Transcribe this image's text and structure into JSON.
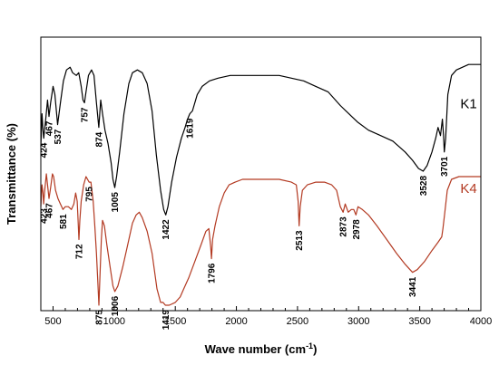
{
  "chart_data": {
    "type": "line",
    "xlabel": "Wave number (cm",
    "xlabel_sup": "-1",
    "xlabel_end": ")",
    "ylabel": "Transmittance (%)",
    "xlim": [
      400,
      4000
    ],
    "ylim": [
      0,
      1
    ],
    "xticks": [
      500,
      1000,
      1500,
      2000,
      2500,
      3000,
      3500,
      4000
    ],
    "grid": false,
    "series": [
      {
        "name": "K1",
        "color": "#000000",
        "points": [
          [
            400,
            0.6
          ],
          [
            410,
            0.72
          ],
          [
            418,
            0.66
          ],
          [
            424,
            0.63
          ],
          [
            440,
            0.7
          ],
          [
            455,
            0.77
          ],
          [
            467,
            0.71
          ],
          [
            480,
            0.76
          ],
          [
            500,
            0.82
          ],
          [
            515,
            0.79
          ],
          [
            537,
            0.68
          ],
          [
            560,
            0.76
          ],
          [
            585,
            0.84
          ],
          [
            610,
            0.88
          ],
          [
            640,
            0.89
          ],
          [
            660,
            0.87
          ],
          [
            690,
            0.86
          ],
          [
            710,
            0.87
          ],
          [
            730,
            0.82
          ],
          [
            745,
            0.77
          ],
          [
            757,
            0.76
          ],
          [
            770,
            0.8
          ],
          [
            790,
            0.86
          ],
          [
            815,
            0.88
          ],
          [
            835,
            0.86
          ],
          [
            855,
            0.76
          ],
          [
            874,
            0.67
          ],
          [
            890,
            0.77
          ],
          [
            905,
            0.72
          ],
          [
            925,
            0.66
          ],
          [
            950,
            0.61
          ],
          [
            975,
            0.54
          ],
          [
            990,
            0.48
          ],
          [
            1005,
            0.45
          ],
          [
            1020,
            0.49
          ],
          [
            1045,
            0.58
          ],
          [
            1080,
            0.72
          ],
          [
            1120,
            0.83
          ],
          [
            1150,
            0.87
          ],
          [
            1190,
            0.88
          ],
          [
            1230,
            0.87
          ],
          [
            1270,
            0.83
          ],
          [
            1310,
            0.73
          ],
          [
            1345,
            0.57
          ],
          [
            1380,
            0.44
          ],
          [
            1405,
            0.37
          ],
          [
            1422,
            0.35
          ],
          [
            1440,
            0.38
          ],
          [
            1470,
            0.47
          ],
          [
            1510,
            0.56
          ],
          [
            1550,
            0.63
          ],
          [
            1580,
            0.67
          ],
          [
            1600,
            0.7
          ],
          [
            1619,
            0.72
          ],
          [
            1640,
            0.73
          ],
          [
            1680,
            0.79
          ],
          [
            1720,
            0.82
          ],
          [
            1780,
            0.84
          ],
          [
            1850,
            0.85
          ],
          [
            1950,
            0.86
          ],
          [
            2050,
            0.86
          ],
          [
            2150,
            0.86
          ],
          [
            2250,
            0.86
          ],
          [
            2350,
            0.86
          ],
          [
            2450,
            0.85
          ],
          [
            2550,
            0.84
          ],
          [
            2650,
            0.82
          ],
          [
            2750,
            0.8
          ],
          [
            2850,
            0.75
          ],
          [
            2920,
            0.72
          ],
          [
            2990,
            0.69
          ],
          [
            3080,
            0.66
          ],
          [
            3180,
            0.64
          ],
          [
            3280,
            0.62
          ],
          [
            3380,
            0.58
          ],
          [
            3440,
            0.55
          ],
          [
            3490,
            0.52
          ],
          [
            3528,
            0.51
          ],
          [
            3560,
            0.53
          ],
          [
            3600,
            0.58
          ],
          [
            3630,
            0.63
          ],
          [
            3650,
            0.67
          ],
          [
            3670,
            0.64
          ],
          [
            3685,
            0.7
          ],
          [
            3695,
            0.64
          ],
          [
            3701,
            0.58
          ],
          [
            3712,
            0.63
          ],
          [
            3730,
            0.79
          ],
          [
            3760,
            0.86
          ],
          [
            3800,
            0.88
          ],
          [
            3850,
            0.89
          ],
          [
            3900,
            0.9
          ],
          [
            3950,
            0.9
          ],
          [
            4000,
            0.9
          ]
        ]
      },
      {
        "name": "K4",
        "color": "#b33a22",
        "points": [
          [
            400,
            0.38
          ],
          [
            410,
            0.46
          ],
          [
            418,
            0.43
          ],
          [
            423,
            0.39
          ],
          [
            432,
            0.44
          ],
          [
            445,
            0.5
          ],
          [
            455,
            0.46
          ],
          [
            467,
            0.41
          ],
          [
            480,
            0.45
          ],
          [
            495,
            0.5
          ],
          [
            505,
            0.49
          ],
          [
            520,
            0.44
          ],
          [
            540,
            0.41
          ],
          [
            560,
            0.39
          ],
          [
            581,
            0.37
          ],
          [
            600,
            0.38
          ],
          [
            625,
            0.38
          ],
          [
            650,
            0.37
          ],
          [
            670,
            0.39
          ],
          [
            685,
            0.43
          ],
          [
            698,
            0.4
          ],
          [
            706,
            0.32
          ],
          [
            712,
            0.26
          ],
          [
            719,
            0.33
          ],
          [
            730,
            0.4
          ],
          [
            750,
            0.46
          ],
          [
            770,
            0.49
          ],
          [
            795,
            0.47
          ],
          [
            810,
            0.47
          ],
          [
            828,
            0.4
          ],
          [
            842,
            0.31
          ],
          [
            855,
            0.21
          ],
          [
            867,
            0.1
          ],
          [
            875,
            0.02
          ],
          [
            883,
            0.12
          ],
          [
            895,
            0.26
          ],
          [
            905,
            0.33
          ],
          [
            920,
            0.31
          ],
          [
            940,
            0.24
          ],
          [
            970,
            0.15
          ],
          [
            990,
            0.09
          ],
          [
            1006,
            0.07
          ],
          [
            1030,
            0.09
          ],
          [
            1070,
            0.16
          ],
          [
            1110,
            0.24
          ],
          [
            1150,
            0.32
          ],
          [
            1180,
            0.35
          ],
          [
            1205,
            0.36
          ],
          [
            1230,
            0.34
          ],
          [
            1270,
            0.29
          ],
          [
            1310,
            0.21
          ],
          [
            1350,
            0.08
          ],
          [
            1380,
            0.03
          ],
          [
            1400,
            0.03
          ],
          [
            1419,
            0.02
          ],
          [
            1450,
            0.02
          ],
          [
            1500,
            0.03
          ],
          [
            1540,
            0.05
          ],
          [
            1570,
            0.08
          ],
          [
            1610,
            0.12
          ],
          [
            1660,
            0.18
          ],
          [
            1710,
            0.24
          ],
          [
            1750,
            0.29
          ],
          [
            1775,
            0.3
          ],
          [
            1790,
            0.23
          ],
          [
            1796,
            0.19
          ],
          [
            1805,
            0.26
          ],
          [
            1825,
            0.31
          ],
          [
            1860,
            0.38
          ],
          [
            1900,
            0.43
          ],
          [
            1940,
            0.46
          ],
          [
            1990,
            0.47
          ],
          [
            2050,
            0.48
          ],
          [
            2150,
            0.48
          ],
          [
            2250,
            0.48
          ],
          [
            2350,
            0.48
          ],
          [
            2450,
            0.47
          ],
          [
            2490,
            0.46
          ],
          [
            2505,
            0.4
          ],
          [
            2513,
            0.31
          ],
          [
            2522,
            0.38
          ],
          [
            2540,
            0.44
          ],
          [
            2580,
            0.46
          ],
          [
            2650,
            0.47
          ],
          [
            2720,
            0.47
          ],
          [
            2780,
            0.46
          ],
          [
            2820,
            0.44
          ],
          [
            2850,
            0.38
          ],
          [
            2873,
            0.36
          ],
          [
            2890,
            0.39
          ],
          [
            2915,
            0.36
          ],
          [
            2940,
            0.37
          ],
          [
            2960,
            0.37
          ],
          [
            2978,
            0.35
          ],
          [
            2995,
            0.38
          ],
          [
            3030,
            0.37
          ],
          [
            3080,
            0.35
          ],
          [
            3150,
            0.31
          ],
          [
            3230,
            0.26
          ],
          [
            3310,
            0.21
          ],
          [
            3380,
            0.17
          ],
          [
            3420,
            0.15
          ],
          [
            3441,
            0.14
          ],
          [
            3480,
            0.15
          ],
          [
            3540,
            0.18
          ],
          [
            3600,
            0.22
          ],
          [
            3650,
            0.25
          ],
          [
            3680,
            0.27
          ],
          [
            3690,
            0.3
          ],
          [
            3705,
            0.36
          ],
          [
            3725,
            0.44
          ],
          [
            3760,
            0.48
          ],
          [
            3820,
            0.49
          ],
          [
            3900,
            0.49
          ],
          [
            3950,
            0.49
          ],
          [
            4000,
            0.49
          ]
        ]
      }
    ],
    "series_labels": [
      {
        "text": "K1",
        "series": 0,
        "x": 3900,
        "y": 0.74
      },
      {
        "text": "K4",
        "series": 1,
        "x": 3900,
        "y": 0.43
      }
    ],
    "annotations": [
      {
        "text": "424",
        "x": 424,
        "y": 0.63
      },
      {
        "text": "467",
        "x": 467,
        "y": 0.71
      },
      {
        "text": "537",
        "x": 537,
        "y": 0.68
      },
      {
        "text": "757",
        "x": 757,
        "y": 0.76
      },
      {
        "text": "874",
        "x": 874,
        "y": 0.67
      },
      {
        "text": "1005",
        "x": 1005,
        "y": 0.45
      },
      {
        "text": "1422",
        "x": 1422,
        "y": 0.35
      },
      {
        "text": "1619",
        "x": 1619,
        "y": 0.72
      },
      {
        "text": "3528",
        "x": 3528,
        "y": 0.51
      },
      {
        "text": "3701",
        "x": 3701,
        "y": 0.58
      },
      {
        "text": "423",
        "x": 423,
        "y": 0.39
      },
      {
        "text": "467",
        "x": 467,
        "y": 0.41
      },
      {
        "text": "581",
        "x": 581,
        "y": 0.37
      },
      {
        "text": "712",
        "x": 712,
        "y": 0.26
      },
      {
        "text": "795",
        "x": 795,
        "y": 0.47
      },
      {
        "text": "875",
        "x": 875,
        "y": 0.02
      },
      {
        "text": "1006",
        "x": 1006,
        "y": 0.07
      },
      {
        "text": "1419",
        "x": 1419,
        "y": 0.02
      },
      {
        "text": "1796",
        "x": 1796,
        "y": 0.19
      },
      {
        "text": "2513",
        "x": 2513,
        "y": 0.31
      },
      {
        "text": "2873",
        "x": 2873,
        "y": 0.36
      },
      {
        "text": "2978",
        "x": 2978,
        "y": 0.35
      },
      {
        "text": "3441",
        "x": 3441,
        "y": 0.14
      }
    ]
  }
}
